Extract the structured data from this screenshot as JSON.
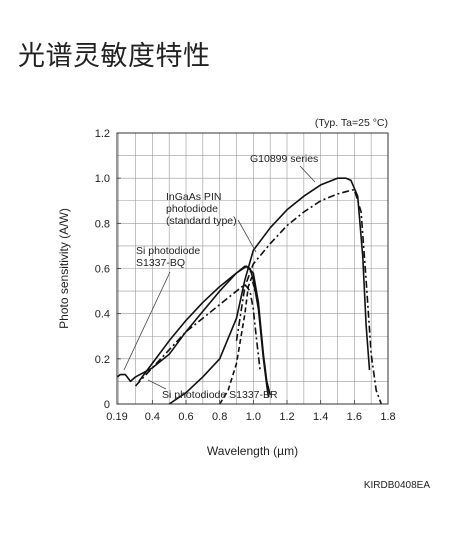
{
  "page": {
    "title": "光谱灵敏度特性"
  },
  "chart_data": {
    "type": "line",
    "xlabel": "Wavelength (µm)",
    "ylabel": "Photo sensitivity (A/W)",
    "note": "(Typ. Ta=25 °C)",
    "document_code": "KIRDB0408EA",
    "xlim": [
      0.19,
      1.8
    ],
    "ylim": [
      0,
      1.2
    ],
    "x_ticks": [
      "0.19",
      "0.4",
      "0.6",
      "0.8",
      "1.0",
      "1.2",
      "1.4",
      "1.6",
      "1.8"
    ],
    "y_ticks": [
      "0",
      "0.2",
      "0.4",
      "0.6",
      "0.8",
      "1.0",
      "1.2"
    ],
    "grid": true,
    "series": [
      {
        "name": "G10899 series",
        "style": "solid",
        "x": [
          0.5,
          0.6,
          0.7,
          0.8,
          0.9,
          0.95,
          1.0,
          1.1,
          1.2,
          1.3,
          1.4,
          1.5,
          1.55,
          1.58,
          1.62,
          1.65,
          1.67,
          1.69
        ],
        "y": [
          0.0,
          0.05,
          0.12,
          0.2,
          0.38,
          0.55,
          0.68,
          0.78,
          0.86,
          0.92,
          0.97,
          1.0,
          1.0,
          0.99,
          0.92,
          0.65,
          0.35,
          0.15
        ]
      },
      {
        "name": "InGaAs PIN photodiode (standard type)",
        "style": "dashdot",
        "x": [
          0.9,
          0.95,
          1.0,
          1.1,
          1.2,
          1.3,
          1.4,
          1.5,
          1.55,
          1.6,
          1.64,
          1.67,
          1.7,
          1.73,
          1.76
        ],
        "y": [
          0.28,
          0.52,
          0.62,
          0.71,
          0.79,
          0.85,
          0.9,
          0.93,
          0.94,
          0.95,
          0.85,
          0.55,
          0.22,
          0.06,
          0.0
        ]
      },
      {
        "name": "Si photodiode S1337-BQ",
        "style": "solid",
        "x": [
          0.19,
          0.21,
          0.24,
          0.27,
          0.3,
          0.35,
          0.4,
          0.5,
          0.6,
          0.7,
          0.8,
          0.9,
          0.96,
          1.0,
          1.03,
          1.06,
          1.08,
          1.1
        ],
        "y": [
          0.12,
          0.13,
          0.13,
          0.1,
          0.12,
          0.14,
          0.16,
          0.22,
          0.32,
          0.41,
          0.5,
          0.58,
          0.61,
          0.58,
          0.45,
          0.22,
          0.1,
          0.04
        ]
      },
      {
        "name": "Si photodiode S1337-BR",
        "style": "solid",
        "x": [
          0.32,
          0.35,
          0.4,
          0.5,
          0.6,
          0.7,
          0.8,
          0.9,
          0.95,
          0.98,
          1.0,
          1.03,
          1.06,
          1.08,
          1.09
        ],
        "y": [
          0.1,
          0.13,
          0.18,
          0.28,
          0.37,
          0.45,
          0.52,
          0.58,
          0.61,
          0.6,
          0.55,
          0.42,
          0.2,
          0.08,
          0.03
        ]
      },
      {
        "name": "Si photodiode S1337-BR (dash-dot)",
        "style": "dashdot",
        "x": [
          0.3,
          0.35,
          0.4,
          0.5,
          0.6,
          0.7,
          0.8,
          0.9,
          0.95,
          0.98,
          1.0,
          1.02,
          1.04
        ],
        "y": [
          0.08,
          0.12,
          0.16,
          0.24,
          0.32,
          0.38,
          0.44,
          0.5,
          0.53,
          0.5,
          0.42,
          0.28,
          0.15
        ]
      },
      {
        "name": "Si photodiode S1337-BR (dashed)",
        "style": "dashed",
        "x": [
          0.8,
          0.85,
          0.9,
          0.95,
          0.97,
          0.99,
          1.01
        ],
        "y": [
          0.0,
          0.06,
          0.18,
          0.4,
          0.52,
          0.56,
          0.5
        ]
      }
    ],
    "annotations": [
      {
        "id": "g10899",
        "lines": [
          "G10899 series"
        ]
      },
      {
        "id": "ingaas",
        "lines": [
          "InGaAs PIN",
          "photodiode",
          "(standard type)"
        ]
      },
      {
        "id": "si_bq",
        "lines": [
          "Si photodiode",
          "S1337-BQ"
        ]
      },
      {
        "id": "si_br",
        "lines": [
          "Si photodiode S1337-BR"
        ]
      }
    ]
  }
}
